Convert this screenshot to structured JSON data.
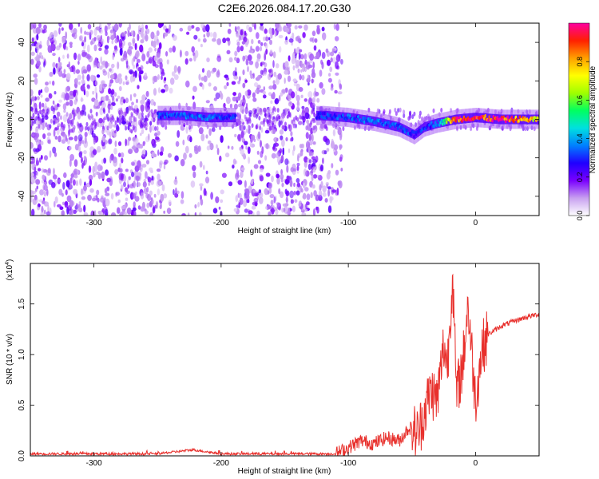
{
  "title": "C2E6.2026.084.17.20.G30",
  "chart_data": [
    {
      "type": "heatmap",
      "xlabel": "Height of straight line (km)",
      "ylabel": "Frequency (Hz)",
      "xlim": [
        -350,
        50
      ],
      "ylim": [
        -50,
        50
      ],
      "x_ticks": [
        -300,
        -200,
        -100,
        0
      ],
      "x_tick_labels": [
        "-300",
        "-200",
        "-100",
        "0"
      ],
      "y_ticks": [
        -40,
        -20,
        0,
        20,
        40
      ],
      "y_tick_labels": [
        "-40",
        "-20",
        "0",
        "20",
        "40"
      ],
      "colorbar": {
        "label": "Normalized spectral amplitude",
        "range": [
          0,
          1
        ],
        "ticks": [
          0.0,
          0.2,
          0.4,
          0.6,
          0.8
        ],
        "tick_labels": [
          "0.0",
          "0.2",
          "0.4",
          "0.6",
          "0.8"
        ],
        "colors": [
          "#ffffff",
          "#c8a0f0",
          "#7a00ff",
          "#2000ff",
          "#0080ff",
          "#00e0e0",
          "#00ff60",
          "#a0ff00",
          "#ffff00",
          "#ffa000",
          "#ff2000",
          "#ff00a0"
        ]
      },
      "signal_track": {
        "x": [
          -250,
          -230,
          -210,
          -190,
          -120,
          -100,
          -80,
          -60,
          -48,
          -40,
          -30,
          -15,
          0,
          20,
          50
        ],
        "freq_hz": [
          2,
          2,
          1,
          1,
          2,
          1,
          -1,
          -4,
          -8,
          -4,
          -2,
          0,
          1,
          0,
          0
        ],
        "amplitude": [
          0.3,
          0.35,
          0.35,
          0.3,
          0.3,
          0.35,
          0.35,
          0.35,
          0.3,
          0.3,
          0.35,
          0.9,
          0.9,
          1.0,
          0.7
        ]
      }
    },
    {
      "type": "line",
      "xlabel": "Height of straight line (km)",
      "ylabel": "SNR (10 * v/v)",
      "scale_label": "(x10",
      "scale_exp": "4",
      "scale_close": ")",
      "xlim": [
        -350,
        50
      ],
      "ylim": [
        0,
        1.9
      ],
      "x_ticks": [
        -300,
        -200,
        -100,
        0
      ],
      "x_tick_labels": [
        "-300",
        "-200",
        "-100",
        "0"
      ],
      "y_ticks": [
        0.0,
        0.5,
        1.0,
        1.5
      ],
      "y_tick_labels": [
        "0.0",
        "0.5",
        "1.0",
        "1.5"
      ],
      "series": [
        {
          "name": "SNR",
          "color": "#e8302c",
          "x": [
            -350,
            -300,
            -250,
            -222,
            -200,
            -150,
            -110,
            -100,
            -90,
            -80,
            -70,
            -60,
            -52,
            -45,
            -40,
            -35,
            -30,
            -25,
            -22,
            -18,
            -15,
            -10,
            -6,
            0,
            5,
            10,
            20,
            30,
            40,
            50
          ],
          "y": [
            0.02,
            0.02,
            0.02,
            0.06,
            0.02,
            0.02,
            0.02,
            0.08,
            0.15,
            0.12,
            0.18,
            0.15,
            0.28,
            0.22,
            0.45,
            0.65,
            0.55,
            1.1,
            0.9,
            1.8,
            0.6,
            0.9,
            1.5,
            0.55,
            1.05,
            1.2,
            1.28,
            1.33,
            1.37,
            1.4
          ]
        }
      ]
    }
  ]
}
